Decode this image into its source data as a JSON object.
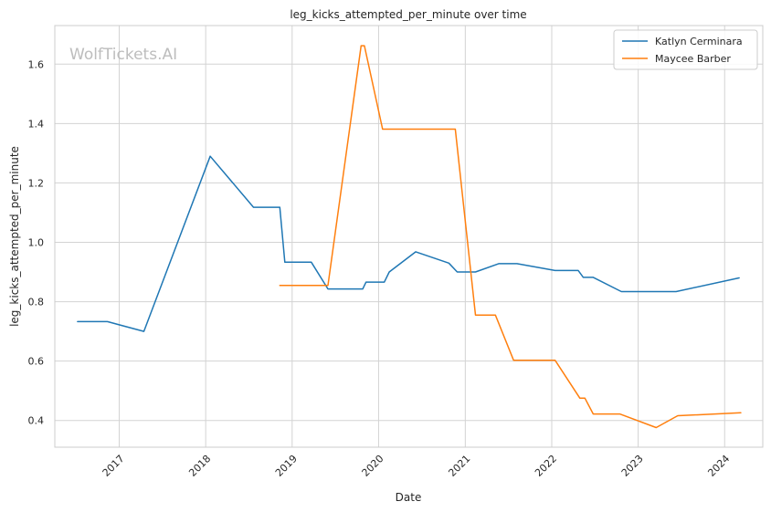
{
  "chart_data": {
    "type": "line",
    "title": "leg_kicks_attempted_per_minute over time",
    "xlabel": "Date",
    "ylabel": "leg_kicks_attempted_per_minute",
    "watermark": "WolfTickets.AI",
    "x_ticks": [
      "2017",
      "2018",
      "2019",
      "2020",
      "2021",
      "2022",
      "2023",
      "2024"
    ],
    "y_ticks": [
      "0.4",
      "0.6",
      "0.8",
      "1.0",
      "1.2",
      "1.4",
      "1.6"
    ],
    "xlim": [
      "2016-04-04",
      "2024-06-10"
    ],
    "ylim": [
      0.31,
      1.73
    ],
    "grid": true,
    "legend_position": "top-right",
    "series": [
      {
        "name": "Katlyn Cerminara",
        "color": "#1f77b4",
        "points": [
          [
            "2016-07-09",
            0.733
          ],
          [
            "2016-11-12",
            0.733
          ],
          [
            "2017-04-15",
            0.7
          ],
          [
            "2018-01-20",
            1.29
          ],
          [
            "2018-07-22",
            1.118
          ],
          [
            "2018-11-10",
            1.118
          ],
          [
            "2018-12-01",
            0.933
          ],
          [
            "2019-03-23",
            0.933
          ],
          [
            "2019-06-01",
            0.843
          ],
          [
            "2019-10-26",
            0.843
          ],
          [
            "2019-11-09",
            0.866
          ],
          [
            "2020-01-25",
            0.866
          ],
          [
            "2020-02-15",
            0.9
          ],
          [
            "2020-06-06",
            0.968
          ],
          [
            "2020-10-24",
            0.93
          ],
          [
            "2020-11-28",
            0.9
          ],
          [
            "2021-02-13",
            0.9
          ],
          [
            "2021-05-22",
            0.928
          ],
          [
            "2021-08-07",
            0.928
          ],
          [
            "2022-01-15",
            0.905
          ],
          [
            "2022-04-23",
            0.905
          ],
          [
            "2022-05-14",
            0.882
          ],
          [
            "2022-06-25",
            0.882
          ],
          [
            "2022-10-22",
            0.834
          ],
          [
            "2023-06-10",
            0.834
          ],
          [
            "2024-03-02",
            0.88
          ]
        ]
      },
      {
        "name": "Maycee Barber",
        "color": "#ff7f0e",
        "points": [
          [
            "2018-11-10",
            0.855
          ],
          [
            "2019-05-04",
            0.855
          ],
          [
            "2019-06-01",
            0.855
          ],
          [
            "2019-10-19",
            1.662
          ],
          [
            "2019-11-02",
            1.662
          ],
          [
            "2020-01-18",
            1.381
          ],
          [
            "2020-11-20",
            1.381
          ],
          [
            "2021-02-13",
            0.755
          ],
          [
            "2021-05-08",
            0.755
          ],
          [
            "2021-07-24",
            0.603
          ],
          [
            "2022-01-15",
            0.603
          ],
          [
            "2022-04-30",
            0.475
          ],
          [
            "2022-05-21",
            0.475
          ],
          [
            "2022-06-25",
            0.422
          ],
          [
            "2022-10-15",
            0.422
          ],
          [
            "2023-03-18",
            0.376
          ],
          [
            "2023-06-17",
            0.416
          ],
          [
            "2024-03-09",
            0.426
          ]
        ]
      }
    ]
  }
}
